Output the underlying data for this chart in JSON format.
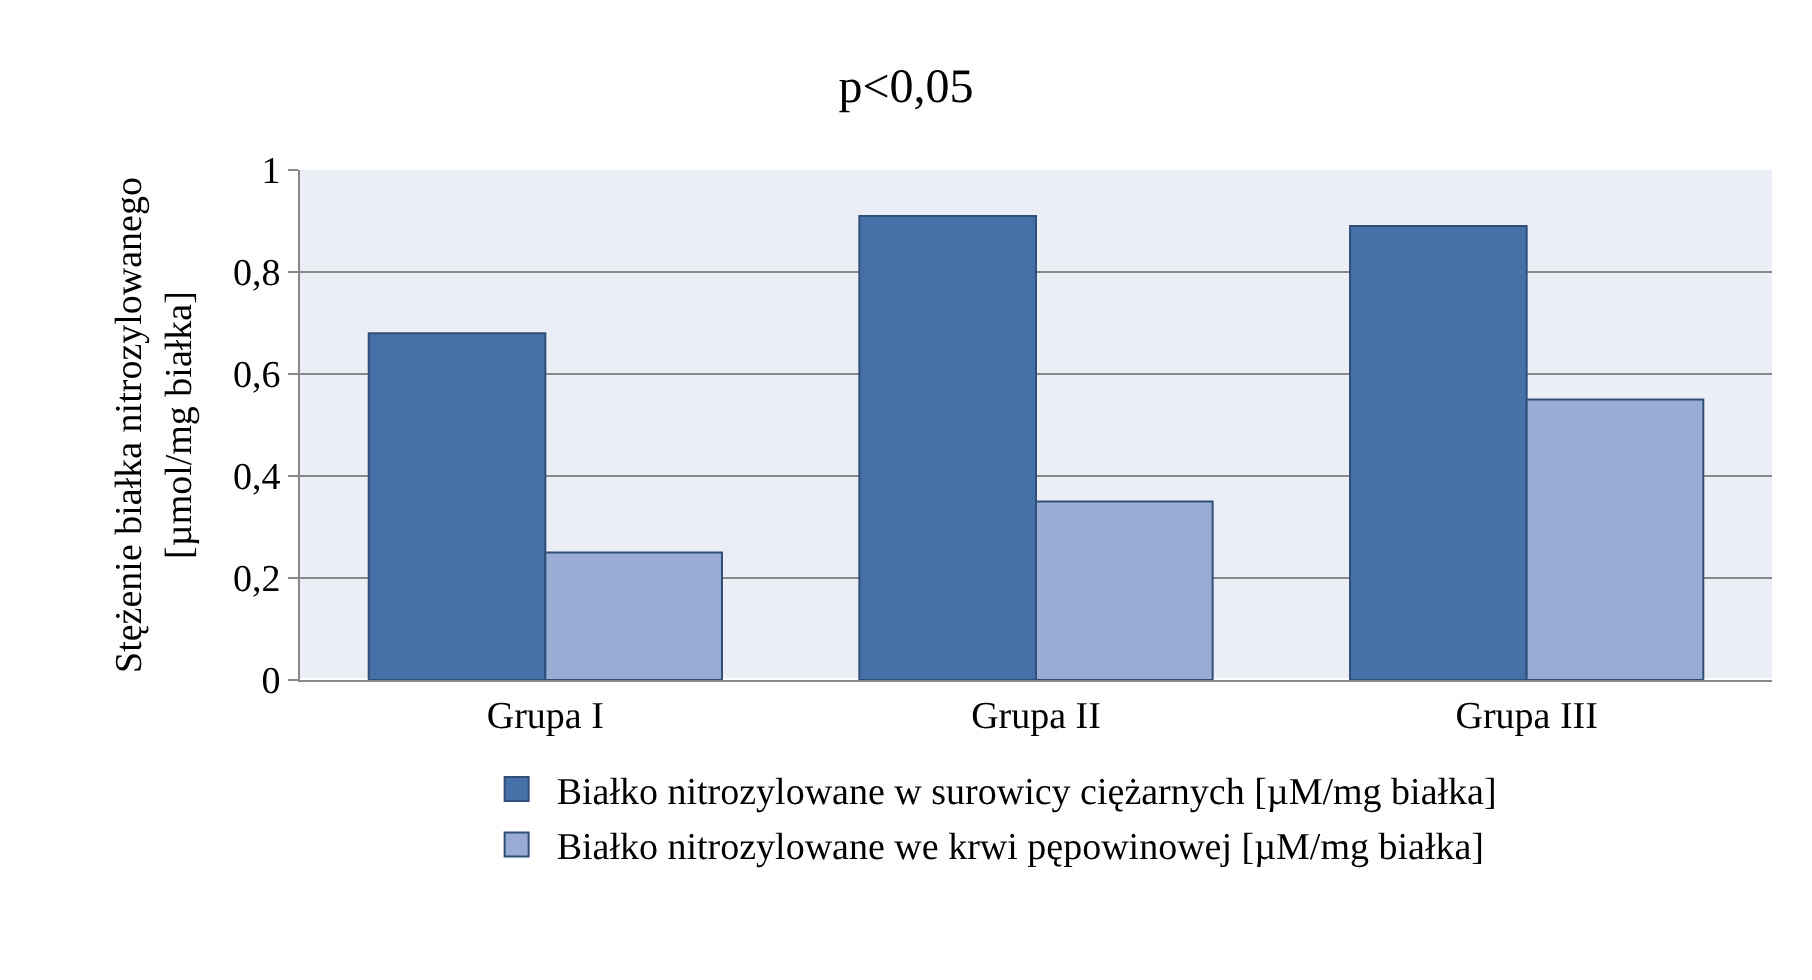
{
  "chart_data": {
    "type": "bar",
    "title": "p<0,05",
    "ylabel": "Stężenie białka nitrozylowanego\n[µmol/mg białka]",
    "categories": [
      "Grupa I",
      "Grupa II",
      "Grupa III"
    ],
    "series": [
      {
        "name": "Białko nitrozylowane w surowicy ciężarnych [µM/mg białka]",
        "color": "#4570a8",
        "values": [
          0.68,
          0.91,
          0.89
        ]
      },
      {
        "name": "Białko nitrozylowane we krwi pępowinowej [µM/mg białka]",
        "color": "#98acd4",
        "values": [
          0.25,
          0.35,
          0.55
        ]
      }
    ],
    "ylim": [
      0,
      1
    ],
    "yticks": [
      0,
      {
        "value": 0.2,
        "label": "0,2"
      },
      {
        "value": 0.4,
        "label": "0,4"
      },
      {
        "value": 0.6,
        "label": "0,6"
      },
      {
        "value": 0.8,
        "label": "0,8"
      },
      1
    ],
    "grid": "y",
    "legend": "bottom"
  }
}
